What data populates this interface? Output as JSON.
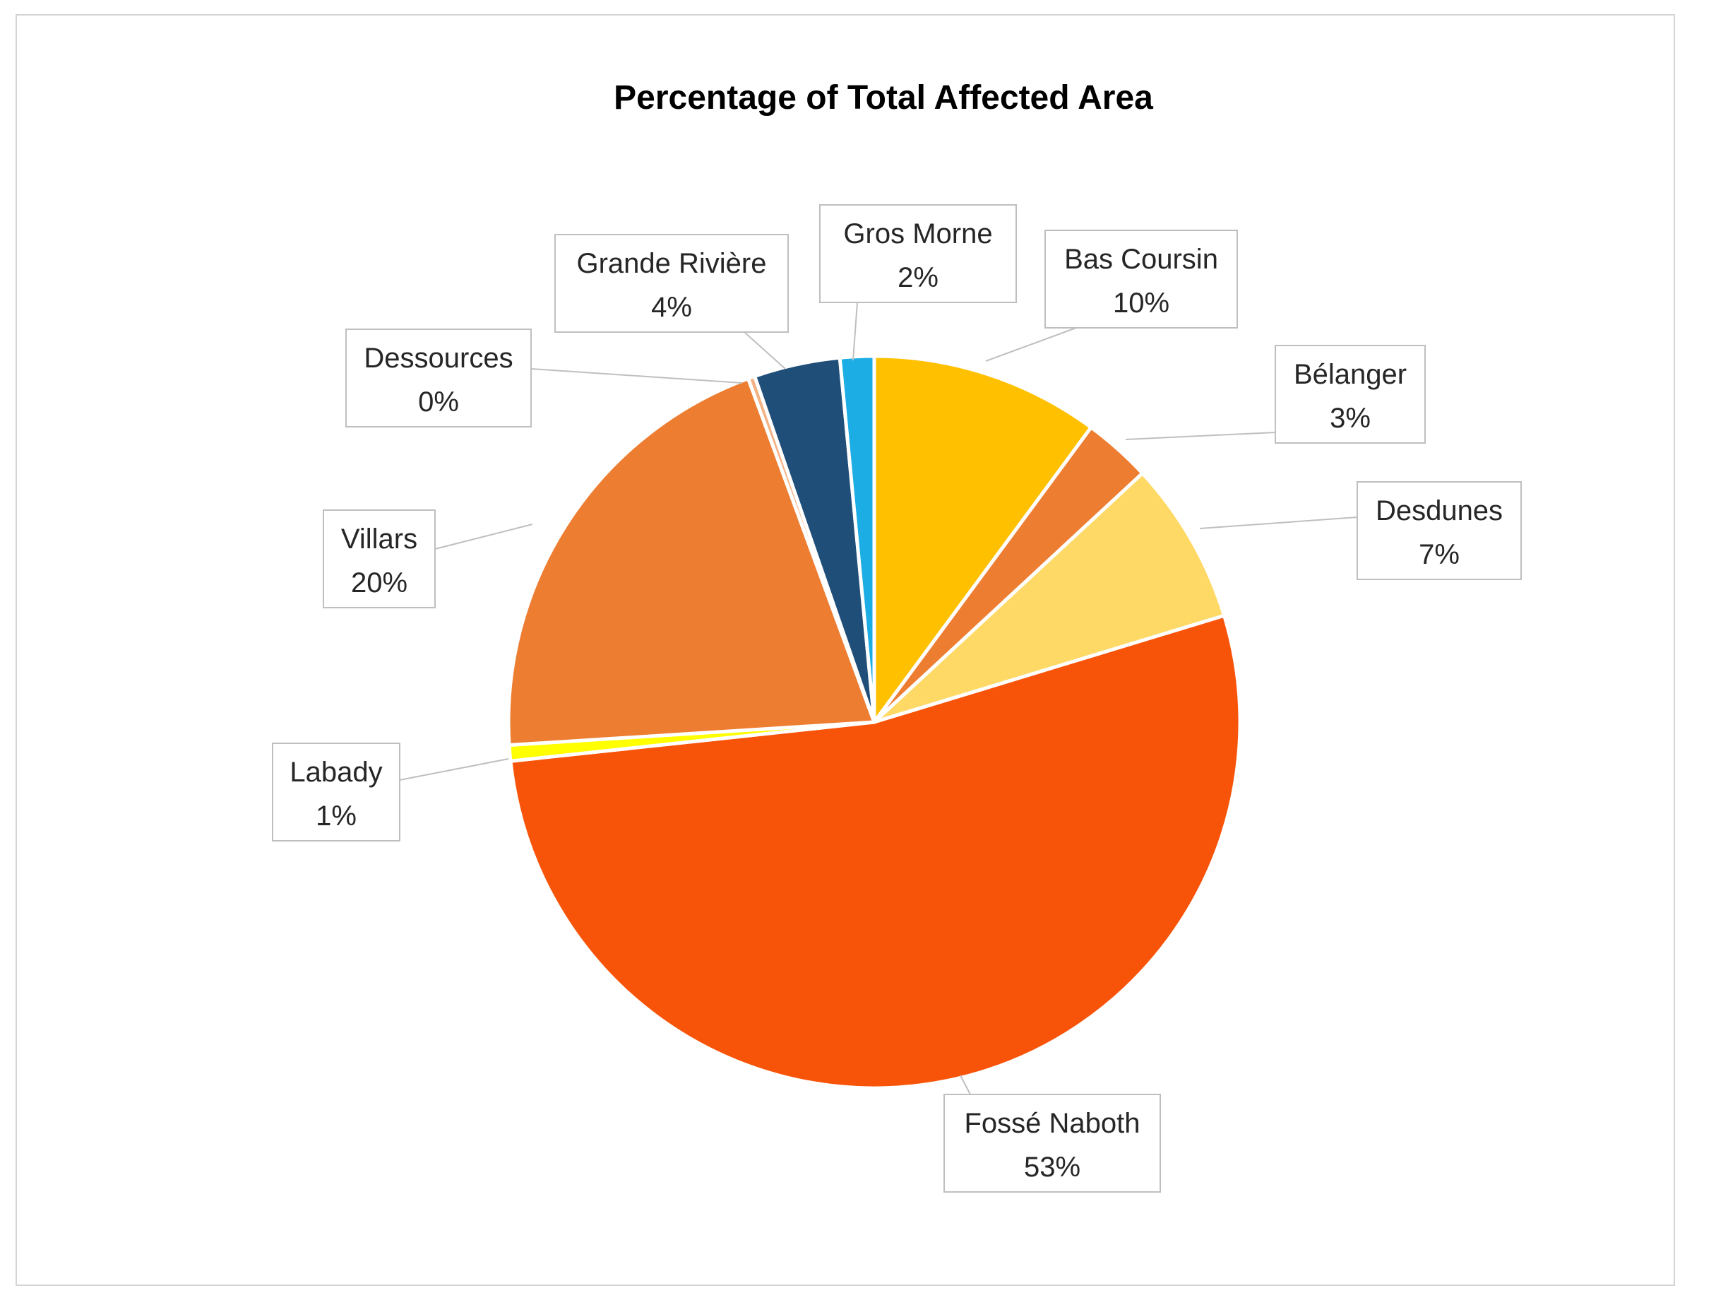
{
  "chart_data": {
    "type": "pie",
    "title": "Percentage of Total Affected Area",
    "slices": [
      {
        "label": "Bas Coursin",
        "value_label": "10%",
        "value": 10.1,
        "color": "#FFC000"
      },
      {
        "label": "Bélanger",
        "value_label": "3%",
        "value": 3.0,
        "color": "#ED7D31"
      },
      {
        "label": "Desdunes",
        "value_label": "7%",
        "value": 7.2,
        "color": "#FFD966"
      },
      {
        "label": "Fossé Naboth",
        "value_label": "53%",
        "value": 53.0,
        "color": "#F85409"
      },
      {
        "label": "Labady",
        "value_label": "1%",
        "value": 0.7,
        "color": "#FFFF00"
      },
      {
        "label": "Villars",
        "value_label": "20%",
        "value": 20.4,
        "color": "#ED7D31"
      },
      {
        "label": "Dessources",
        "value_label": "0%",
        "value": 0.3,
        "color": "#F4B183"
      },
      {
        "label": "Grande Rivière",
        "value_label": "4%",
        "value": 3.8,
        "color": "#1F4E79"
      },
      {
        "label": "Gros Morne",
        "value_label": "2%",
        "value": 1.5,
        "color": "#1CADE4"
      }
    ]
  }
}
